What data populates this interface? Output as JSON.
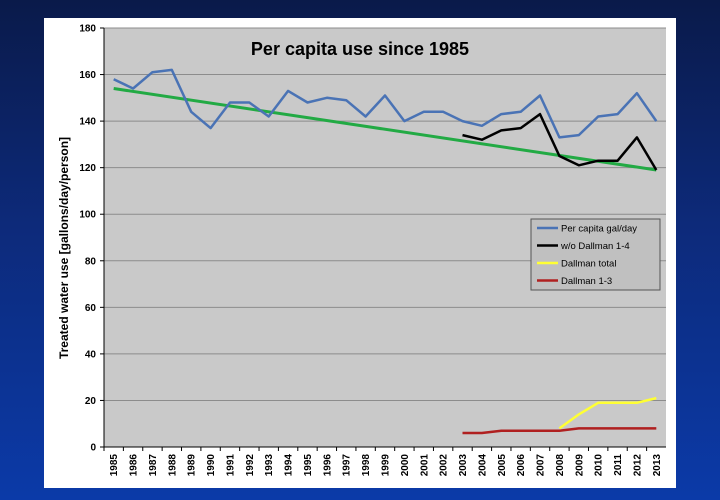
{
  "chart_data": {
    "type": "line",
    "title": "Per capita use since 1985",
    "xlabel": "",
    "ylabel": "Treated water use [gallons/day/person]",
    "ylim": [
      0,
      180
    ],
    "yticks": [
      0,
      20,
      40,
      60,
      80,
      100,
      120,
      140,
      160,
      180
    ],
    "grid": true,
    "legend_position": "right",
    "categories": [
      "1985",
      "1986",
      "1987",
      "1988",
      "1989",
      "1990",
      "1991",
      "1992",
      "1993",
      "1994",
      "1995",
      "1996",
      "1997",
      "1998",
      "1999",
      "2000",
      "2001",
      "2002",
      "2003",
      "2004",
      "2005",
      "2006",
      "2007",
      "2008",
      "2009",
      "2010",
      "2011",
      "2012",
      "2013"
    ],
    "series": [
      {
        "name": "Per capita gal/day",
        "color": "#4a73b5",
        "values": [
          158,
          154,
          161,
          162,
          144,
          137,
          148,
          148,
          142,
          153,
          148,
          150,
          149,
          142,
          151,
          140,
          144,
          144,
          140,
          138,
          143,
          144,
          151,
          133,
          134,
          142,
          143,
          152,
          140
        ]
      },
      {
        "name": "w/o Dallman 1-4",
        "color": "#000000",
        "values": [
          null,
          null,
          null,
          null,
          null,
          null,
          null,
          null,
          null,
          null,
          null,
          null,
          null,
          null,
          null,
          null,
          null,
          null,
          134,
          132,
          136,
          137,
          143,
          125,
          121,
          123,
          123,
          133,
          119
        ]
      },
      {
        "name": "Dallman total",
        "color": "#ffff33",
        "values": [
          null,
          null,
          null,
          null,
          null,
          null,
          null,
          null,
          null,
          null,
          null,
          null,
          null,
          null,
          null,
          null,
          null,
          null,
          null,
          null,
          null,
          null,
          null,
          8,
          14,
          19,
          19,
          19,
          21
        ]
      },
      {
        "name": "Dallman 1-3",
        "color": "#b02020",
        "values": [
          null,
          null,
          null,
          null,
          null,
          null,
          null,
          null,
          null,
          null,
          null,
          null,
          null,
          null,
          null,
          null,
          null,
          null,
          6,
          6,
          7,
          7,
          7,
          7,
          8,
          8,
          8,
          8,
          8
        ]
      }
    ],
    "trendline": {
      "color": "#22aa44",
      "start": {
        "x": "1985",
        "y": 154
      },
      "end": {
        "x": "2013",
        "y": 119
      }
    }
  }
}
